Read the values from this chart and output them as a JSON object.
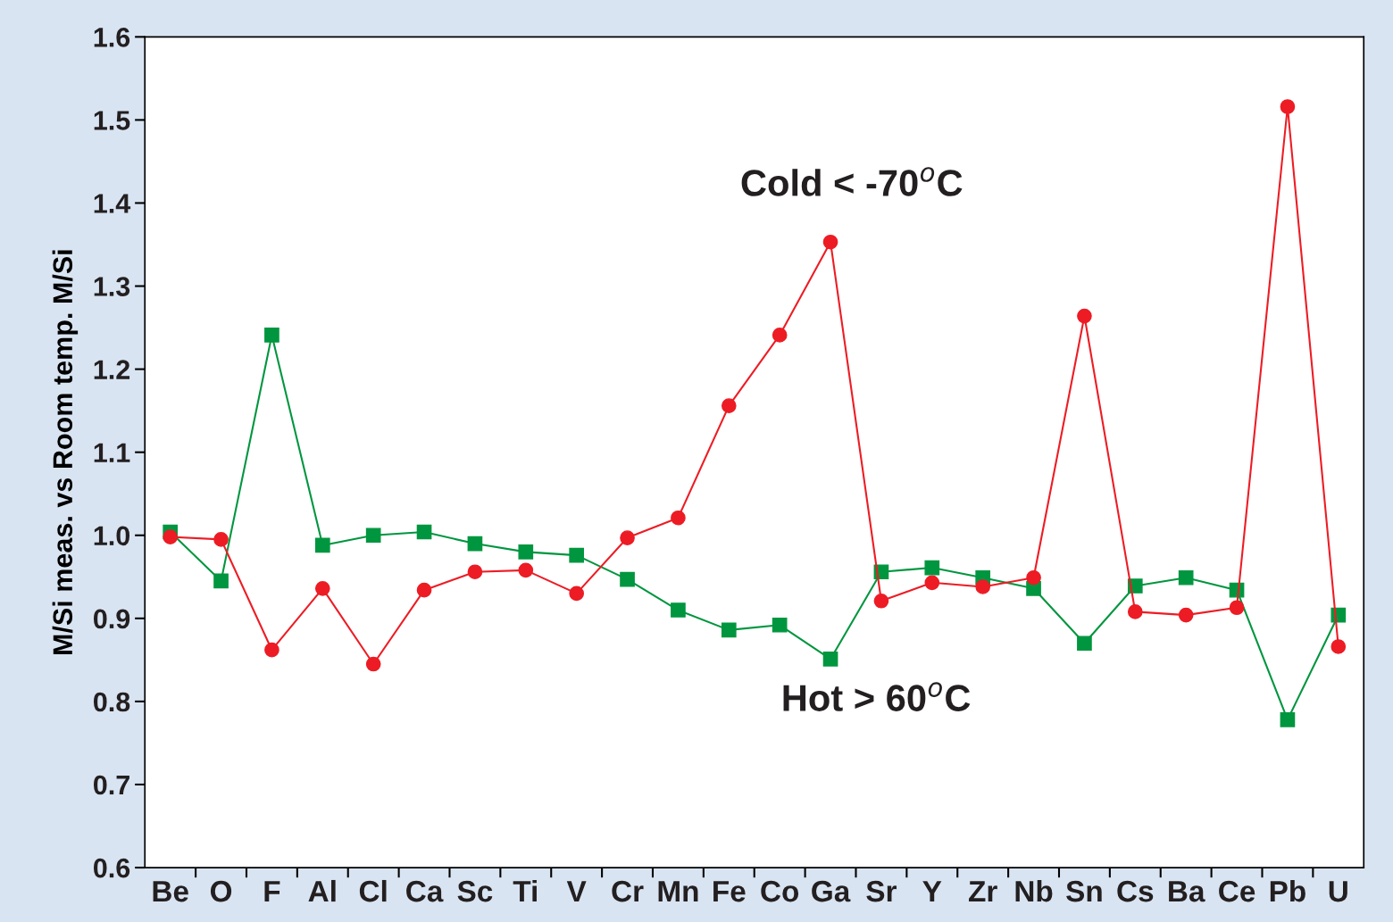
{
  "chart_data": {
    "type": "line",
    "ylabel": "M/Si meas. vs Room temp. M/Si",
    "categories": [
      "Be",
      "O",
      "F",
      "Al",
      "Cl",
      "Ca",
      "Sc",
      "Ti",
      "V",
      "Cr",
      "Mn",
      "Fe",
      "Co",
      "Ga",
      "Sr",
      "Y",
      "Zr",
      "Nb",
      "Sn",
      "Cs",
      "Ba",
      "Ce",
      "Pb",
      "U"
    ],
    "series": [
      {
        "name": "Cold < -70$^{o}$C",
        "color": "#ed1c24",
        "marker": "circle",
        "values": [
          0.998,
          0.995,
          0.862,
          0.936,
          0.845,
          0.934,
          0.956,
          0.958,
          0.93,
          0.997,
          1.021,
          1.156,
          1.241,
          1.353,
          0.921,
          0.943,
          0.938,
          0.949,
          1.264,
          0.908,
          0.904,
          0.913,
          1.516,
          0.866
        ]
      },
      {
        "name": "Hot > 60$^{o}$C",
        "color": "#00963f",
        "marker": "square",
        "values": [
          1.004,
          0.945,
          1.241,
          0.988,
          1.0,
          1.004,
          0.99,
          0.98,
          0.976,
          0.947,
          0.91,
          0.886,
          0.892,
          0.851,
          0.956,
          0.961,
          0.949,
          0.936,
          0.87,
          0.939,
          0.949,
          0.934,
          0.778,
          0.904
        ]
      }
    ],
    "ylim": [
      0.6,
      1.6
    ],
    "yticks": [
      0.6,
      0.7,
      0.8,
      0.9,
      {
        "value": 1.0,
        "label": "1.0"
      },
      1.1,
      1.2,
      1.3,
      1.4,
      1.5,
      1.6
    ],
    "grid": false,
    "legend": false,
    "line_style": "solid"
  }
}
